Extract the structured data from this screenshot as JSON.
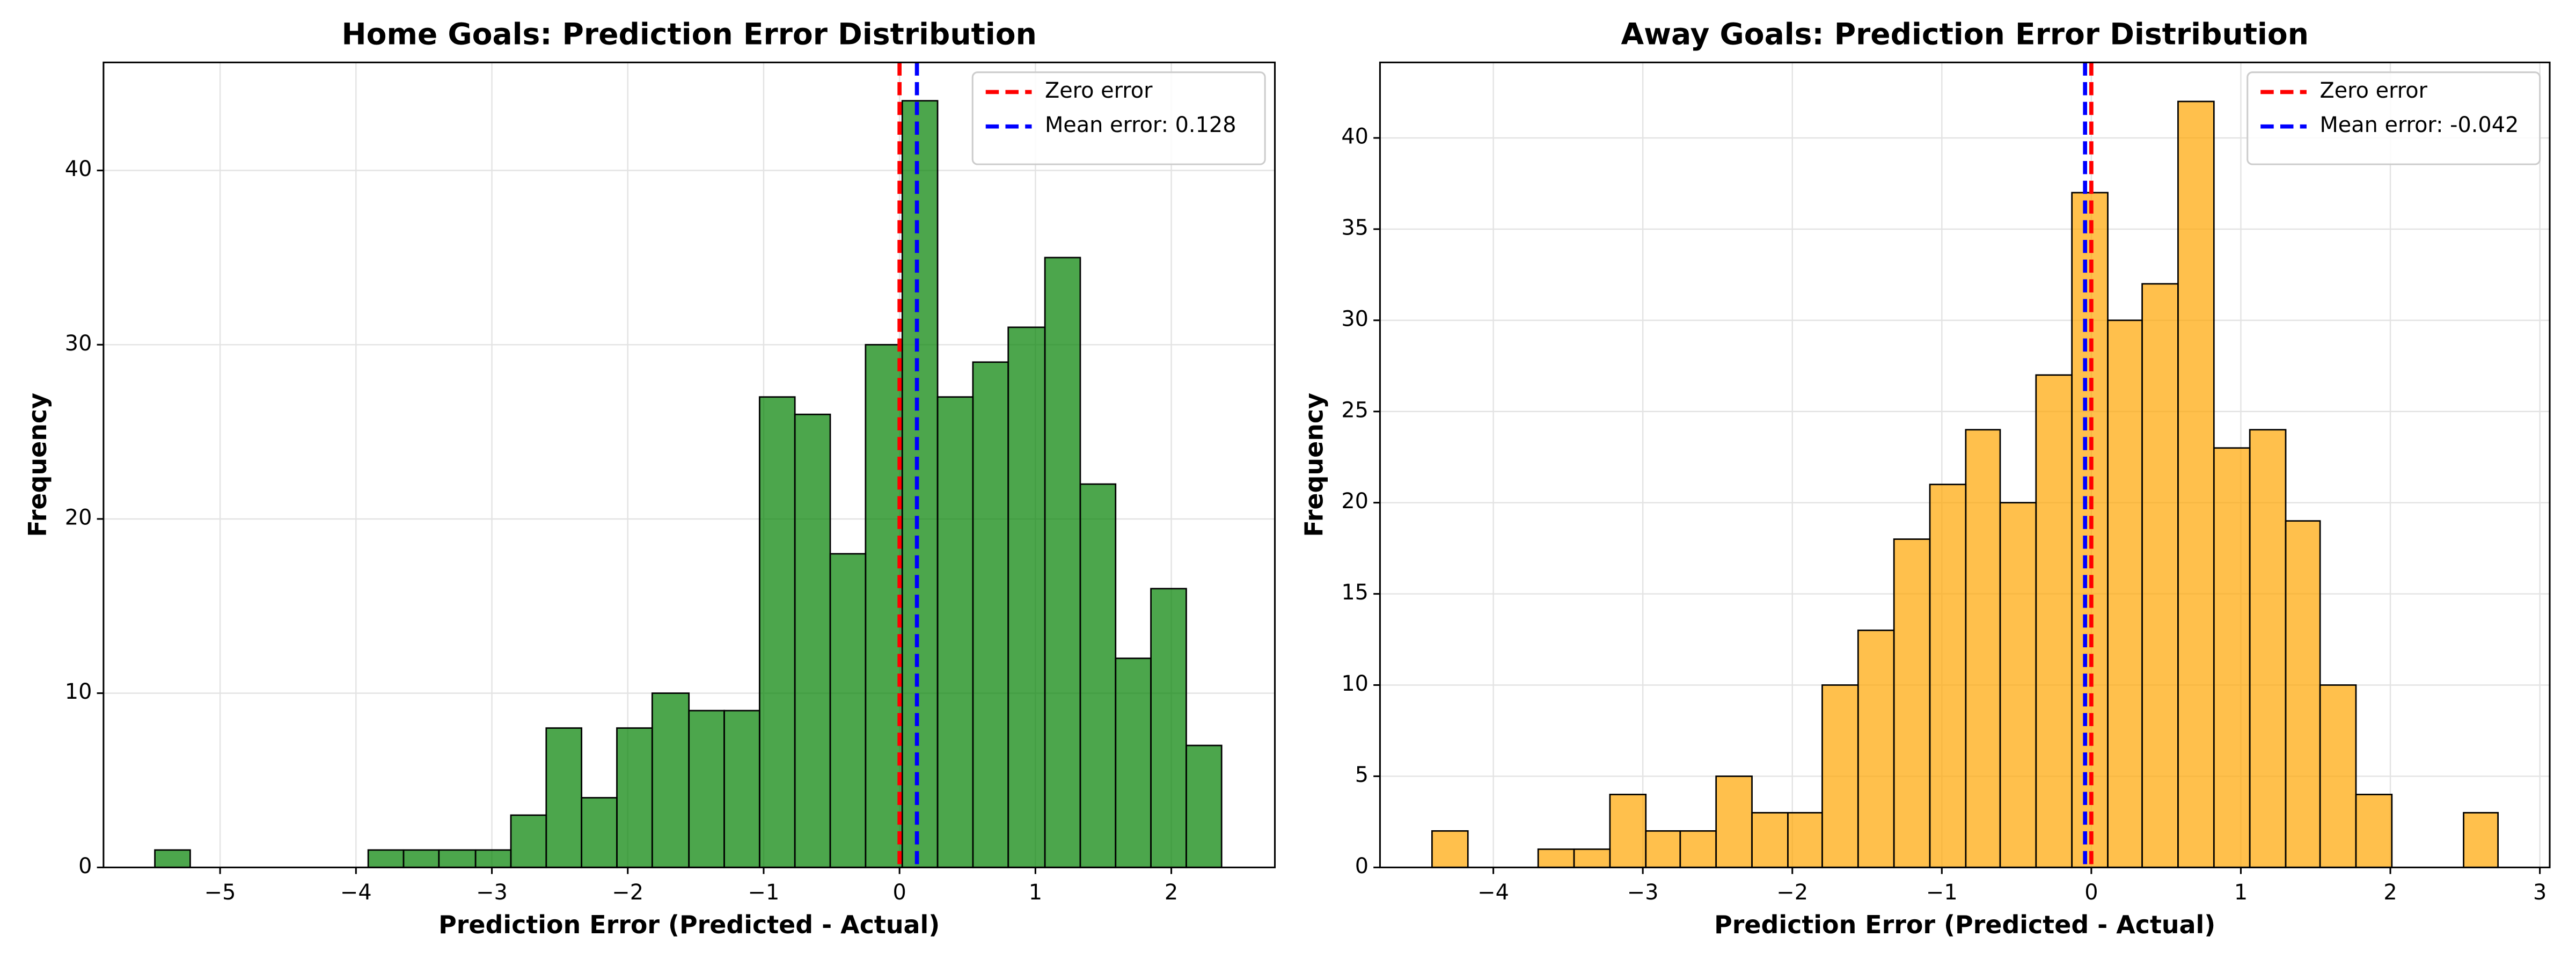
{
  "chart_data": [
    {
      "type": "histogram",
      "title": "Home Goals: Prediction Error Distribution",
      "x_label": "Prediction Error (Predicted - Actual)",
      "y_label": "Frequency",
      "bins": [
        -5.48,
        -5.22,
        -4.96,
        -4.69,
        -4.43,
        -4.17,
        -3.91,
        -3.65,
        -3.39,
        -3.12,
        -2.86,
        -2.6,
        -2.34,
        -2.08,
        -1.82,
        -1.55,
        -1.29,
        -1.03,
        -0.77,
        -0.51,
        -0.25,
        0.02,
        0.28,
        0.54,
        0.8,
        1.07,
        1.33,
        1.59,
        1.85,
        2.11,
        2.37
      ],
      "values": [
        1,
        0,
        0,
        0,
        0,
        0,
        1,
        1,
        1,
        1,
        3,
        8,
        4,
        8,
        10,
        9,
        9,
        27,
        26,
        18,
        30,
        44,
        27,
        29,
        31,
        35,
        22,
        12,
        16,
        7
      ],
      "color": "green",
      "alpha": 0.7,
      "vlines": [
        {
          "x": 0,
          "label": "Zero error",
          "color": "red"
        },
        {
          "x": 0.128,
          "label": "Mean error: 0.128",
          "color": "blue"
        }
      ],
      "xlim": [
        -5.858,
        2.762
      ],
      "ylim": [
        0,
        46.2
      ],
      "xticks": [
        {
          "value": -5,
          "label": "−5"
        },
        {
          "value": -4,
          "label": "−4"
        },
        {
          "value": -3,
          "label": "−3"
        },
        {
          "value": -2,
          "label": "−2"
        },
        {
          "value": -1,
          "label": "−1"
        },
        0,
        1,
        2
      ],
      "yticks": [
        0,
        10,
        20,
        30,
        40
      ],
      "grid": true,
      "legend": "upper right"
    },
    {
      "type": "histogram",
      "title": "Away Goals: Prediction Error Distribution",
      "x_label": "Prediction Error (Predicted - Actual)",
      "y_label": "Frequency",
      "bins": [
        -4.41,
        -4.17,
        -3.93,
        -3.7,
        -3.46,
        -3.22,
        -2.98,
        -2.75,
        -2.51,
        -2.27,
        -2.03,
        -1.8,
        -1.56,
        -1.32,
        -1.08,
        -0.84,
        -0.61,
        -0.37,
        -0.13,
        0.11,
        0.34,
        0.58,
        0.82,
        1.06,
        1.3,
        1.53,
        1.77,
        2.01,
        2.25,
        2.49,
        2.72
      ],
      "values": [
        2,
        0,
        0,
        1,
        1,
        4,
        2,
        2,
        5,
        3,
        3,
        10,
        13,
        18,
        21,
        24,
        20,
        27,
        37,
        30,
        32,
        42,
        23,
        24,
        19,
        10,
        4,
        0,
        0,
        3
      ],
      "color": "orange",
      "alpha": 0.7,
      "vlines": [
        {
          "x": 0,
          "label": "Zero error",
          "color": "red"
        },
        {
          "x": -0.042,
          "label": "Mean error: -0.042",
          "color": "blue"
        }
      ],
      "xlim": [
        -4.758,
        3.066
      ],
      "ylim": [
        0,
        44.14
      ],
      "xticks": [
        {
          "value": -4,
          "label": "−4"
        },
        {
          "value": -3,
          "label": "−3"
        },
        {
          "value": -2,
          "label": "−2"
        },
        {
          "value": -1,
          "label": "−1"
        },
        0,
        1,
        2,
        3
      ],
      "yticks": [
        0,
        5,
        10,
        15,
        20,
        25,
        30,
        35,
        40
      ],
      "grid": true,
      "legend": "upper right"
    }
  ]
}
